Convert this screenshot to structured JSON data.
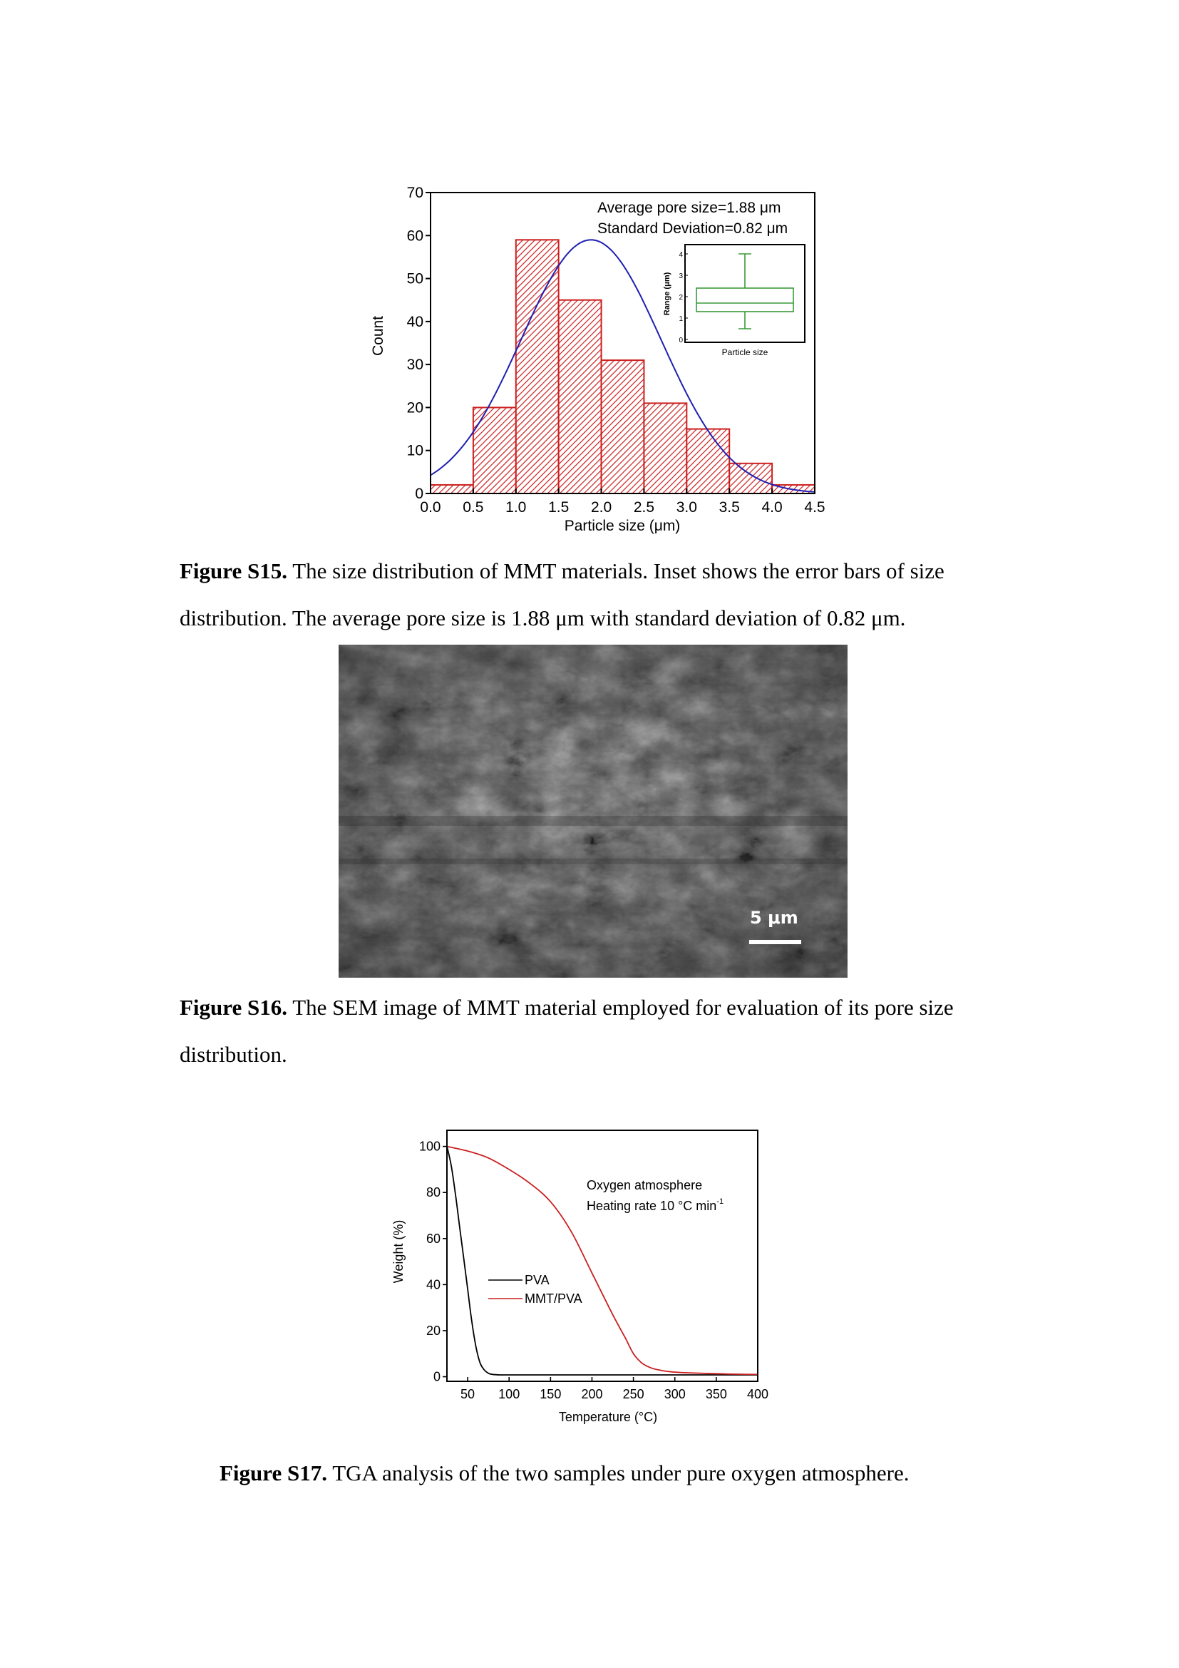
{
  "figure_s15": {
    "caption_label": "Figure S15.",
    "caption_line1": "The size distribution of MMT materials. Inset shows the error bars of size",
    "caption_line2": "distribution. The average pore size is 1.88 μm with standard deviation of 0.82 μm.",
    "annotation_line1": "Average pore size=1.88 μm",
    "annotation_line2": "Standard Deviation=0.82 μm",
    "inset_xlabel": "Particle size",
    "inset_ylabel": "Range (μm)"
  },
  "figure_s16": {
    "caption_label": "Figure S16.",
    "caption_line1": "The SEM image of MMT material employed for evaluation of its pore size",
    "caption_line2": "distribution.",
    "scale_bar_label": "5 μm"
  },
  "figure_s17": {
    "caption_label": "Figure S17.",
    "caption_text": "TGA analysis of the two samples under pure oxygen atmosphere.",
    "annotation_line1": "Oxygen atmosphere",
    "annotation_line2": "Heating rate 10 °C min",
    "annotation_sup": "-1"
  },
  "chart_data": [
    {
      "type": "bar",
      "title": "",
      "xlabel": "Particle size (μm)",
      "ylabel": "Count",
      "xlim": [
        0.0,
        4.5
      ],
      "ylim": [
        0,
        70
      ],
      "x_ticks": [
        "0.0",
        "0.5",
        "1.0",
        "1.5",
        "2.0",
        "2.5",
        "3.0",
        "3.5",
        "4.0",
        "4.5"
      ],
      "y_ticks": [
        "0",
        "10",
        "20",
        "30",
        "40",
        "50",
        "60",
        "70"
      ],
      "bins": [
        [
          0.0,
          0.5
        ],
        [
          0.5,
          1.0
        ],
        [
          1.0,
          1.5
        ],
        [
          1.5,
          2.0
        ],
        [
          2.0,
          2.5
        ],
        [
          2.5,
          3.0
        ],
        [
          3.0,
          3.5
        ],
        [
          3.5,
          4.0
        ],
        [
          4.0,
          4.5
        ]
      ],
      "values": [
        2,
        20,
        59,
        45,
        31,
        21,
        15,
        7,
        2
      ],
      "fit_curve": {
        "type": "gaussian",
        "mean": 1.88,
        "sd": 0.82,
        "peak": 59
      },
      "bar_color": "#cc1f1f",
      "fit_color": "#1f1fb4",
      "grid": false,
      "inset": {
        "type": "box",
        "ylim": [
          0,
          4.3
        ],
        "y_ticks": [
          "0",
          "1",
          "2",
          "3",
          "4"
        ],
        "whisker_low": 0.5,
        "q1": 1.3,
        "median": 1.7,
        "q3": 2.4,
        "whisker_high": 4.0,
        "color": "#3a9a3a"
      }
    },
    {
      "type": "line",
      "title": "",
      "xlabel": "Temperature (°C)",
      "ylabel": "Weight (%)",
      "xlim": [
        25,
        400
      ],
      "ylim": [
        -2,
        107
      ],
      "x_ticks": [
        "50",
        "100",
        "150",
        "200",
        "250",
        "300",
        "350",
        "400"
      ],
      "y_ticks": [
        "0",
        "20",
        "40",
        "60",
        "80",
        "100"
      ],
      "legend": "center-left",
      "grid": false,
      "series": [
        {
          "name": "PVA",
          "color": "#000000",
          "x": [
            25,
            30,
            35,
            40,
            45,
            50,
            55,
            60,
            65,
            70,
            75,
            80,
            90,
            100,
            150,
            200,
            250,
            300,
            350,
            400
          ],
          "y": [
            100,
            92,
            80,
            66,
            52,
            38,
            24,
            13,
            6,
            3,
            1.5,
            1,
            0.8,
            0.8,
            0.8,
            0.8,
            0.8,
            0.8,
            0.8,
            0.8
          ]
        },
        {
          "name": "MMT/PVA",
          "color": "#cc1f1f",
          "x": [
            25,
            50,
            75,
            100,
            125,
            150,
            175,
            200,
            225,
            240,
            250,
            260,
            270,
            280,
            300,
            350,
            400
          ],
          "y": [
            100,
            98,
            95,
            90,
            84,
            76,
            63,
            45,
            27,
            17,
            10,
            6,
            4,
            3,
            2,
            1.3,
            1.0
          ]
        }
      ]
    }
  ]
}
